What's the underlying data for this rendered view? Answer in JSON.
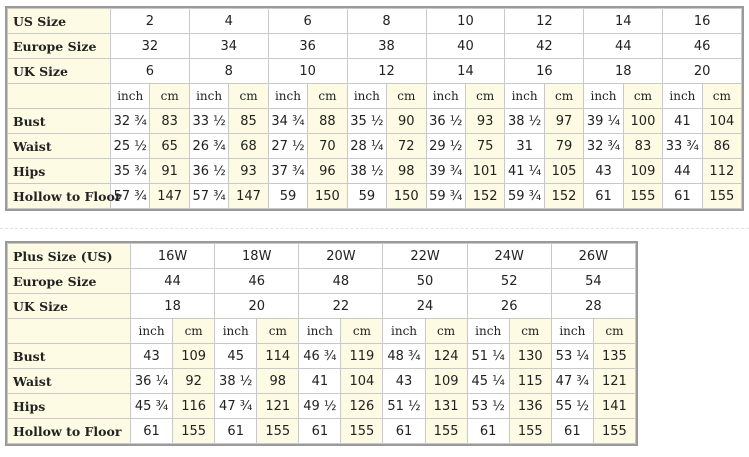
{
  "standard": {
    "header_rows": [
      {
        "label": "US Size",
        "values": [
          "2",
          "4",
          "6",
          "8",
          "10",
          "12",
          "14",
          "16"
        ]
      },
      {
        "label": "Europe Size",
        "values": [
          "32",
          "34",
          "36",
          "38",
          "40",
          "42",
          "44",
          "46"
        ]
      },
      {
        "label": "UK Size",
        "values": [
          "6",
          "8",
          "10",
          "12",
          "14",
          "16",
          "18",
          "20"
        ]
      }
    ],
    "unit_labels": {
      "inch": "inch",
      "cm": "cm"
    },
    "measure_rows": [
      {
        "label": "Bust",
        "values": [
          "32 ¾",
          "83",
          "33 ½",
          "85",
          "34 ¾",
          "88",
          "35 ½",
          "90",
          "36 ½",
          "93",
          "38 ½",
          "97",
          "39 ¼",
          "100",
          "41",
          "104"
        ]
      },
      {
        "label": "Waist",
        "values": [
          "25 ½",
          "65",
          "26 ¾",
          "68",
          "27 ½",
          "70",
          "28 ¼",
          "72",
          "29 ½",
          "75",
          "31",
          "79",
          "32 ¾",
          "83",
          "33 ¾",
          "86"
        ]
      },
      {
        "label": "Hips",
        "values": [
          "35 ¾",
          "91",
          "36 ½",
          "93",
          "37 ¾",
          "96",
          "38 ½",
          "98",
          "39 ¾",
          "101",
          "41 ¼",
          "105",
          "43",
          "109",
          "44",
          "112"
        ]
      },
      {
        "label": "Hollow to Floor",
        "values": [
          "57 ¾",
          "147",
          "57 ¾",
          "147",
          "59",
          "150",
          "59",
          "150",
          "59 ¾",
          "152",
          "59 ¾",
          "152",
          "61",
          "155",
          "61",
          "155"
        ]
      }
    ]
  },
  "plus": {
    "header_rows": [
      {
        "label": "Plus Size (US)",
        "values": [
          "16W",
          "18W",
          "20W",
          "22W",
          "24W",
          "26W"
        ]
      },
      {
        "label": "Europe Size",
        "values": [
          "44",
          "46",
          "48",
          "50",
          "52",
          "54"
        ]
      },
      {
        "label": "UK Size",
        "values": [
          "18",
          "20",
          "22",
          "24",
          "26",
          "28"
        ]
      }
    ],
    "unit_labels": {
      "inch": "inch",
      "cm": "cm"
    },
    "measure_rows": [
      {
        "label": "Bust",
        "values": [
          "43",
          "109",
          "45",
          "114",
          "46 ¾",
          "119",
          "48 ¾",
          "124",
          "51 ¼",
          "130",
          "53 ¼",
          "135"
        ]
      },
      {
        "label": "Waist",
        "values": [
          "36 ¼",
          "92",
          "38 ½",
          "98",
          "41",
          "104",
          "43",
          "109",
          "45 ¼",
          "115",
          "47 ¾",
          "121"
        ]
      },
      {
        "label": "Hips",
        "values": [
          "45 ¾",
          "116",
          "47 ¾",
          "121",
          "49 ½",
          "126",
          "51 ½",
          "131",
          "53 ½",
          "136",
          "55 ½",
          "141"
        ]
      },
      {
        "label": "Hollow to Floor",
        "values": [
          "61",
          "155",
          "61",
          "155",
          "61",
          "155",
          "61",
          "155",
          "61",
          "155",
          "61",
          "155"
        ]
      }
    ]
  },
  "colors": {
    "label_bg": "#fdfbe3",
    "border": "#c9c9c9",
    "outline": "#9a9a9a"
  }
}
